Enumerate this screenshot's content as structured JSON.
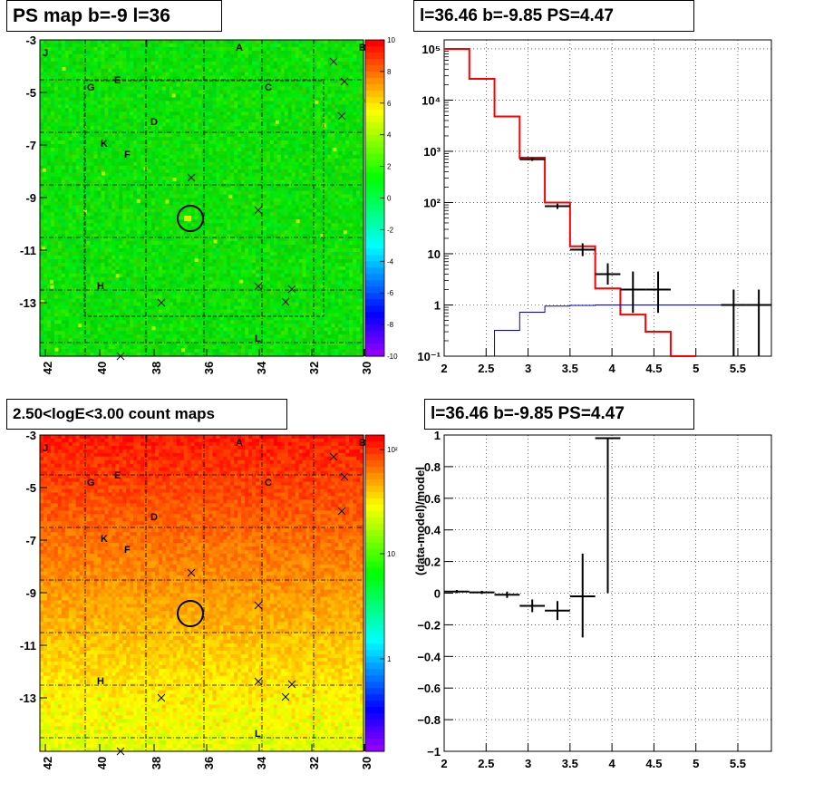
{
  "panels": {
    "tl_title": "PS map b=-9 l=36",
    "tr_title": "l=36.46 b=-9.85 PS=4.47",
    "bl_title": "2.50<logE<3.00 count maps",
    "br_title": "l=36.46 b=-9.85 PS=4.47"
  },
  "maps": {
    "x_ticks": [
      "42",
      "40",
      "38",
      "36",
      "34",
      "32",
      "30"
    ],
    "y_ticks": [
      "-3",
      "-5",
      "-7",
      "-9",
      "-11",
      "-13"
    ],
    "source_labels": [
      "J",
      "I",
      "A",
      "B",
      "E",
      "G",
      "C",
      "D",
      "K",
      "F",
      "H",
      "L"
    ],
    "ts_colorbar_ticks": [
      "10",
      "8",
      "6",
      "4",
      "2",
      "0",
      "-2",
      "-4",
      "-6",
      "-8",
      "-10"
    ],
    "count_colorbar_ticks": [
      "10²",
      "10",
      "1"
    ]
  },
  "chart_data": [
    {
      "type": "line",
      "xlabel": "",
      "ylabel": "",
      "x_ticks": [
        "2",
        "2.5",
        "3",
        "3.5",
        "4",
        "4.5",
        "5",
        "5.5"
      ],
      "y_ticks": [
        "10⁻¹",
        "1",
        "10",
        "10²",
        "10³",
        "10⁴",
        "10⁵"
      ],
      "xlim": [
        2.0,
        5.9
      ],
      "ylim": [
        0.1,
        150000
      ],
      "yscale": "log",
      "grid": true,
      "series": [
        {
          "color": "#ff0000",
          "style": "step",
          "x": [
            2.0,
            2.3,
            2.6,
            2.9,
            3.2,
            3.5,
            3.8,
            4.1,
            4.4,
            4.7
          ],
          "y": [
            100000,
            26000,
            4800,
            750,
            100,
            14,
            2.1,
            0.65,
            0.3,
            0.1
          ]
        },
        {
          "color": "#0000cc",
          "style": "step",
          "x": [
            2.6,
            2.9,
            3.2,
            3.5,
            3.8,
            4.1,
            4.4,
            4.7,
            5.0,
            5.3,
            5.6,
            5.9
          ],
          "y": [
            0.32,
            0.72,
            0.95,
            0.98,
            1.0,
            1.0,
            1.0,
            1.0,
            1.0,
            1.0,
            1.0,
            1.0
          ]
        },
        {
          "color": "#000000",
          "style": "errorbar",
          "x": [
            3.05,
            3.35,
            3.65,
            3.95,
            4.25,
            4.55,
            5.45,
            5.75
          ],
          "y": [
            700,
            85,
            12,
            4,
            2,
            2,
            1,
            1
          ],
          "ylo": [
            650,
            75,
            9,
            2.5,
            0.7,
            0.7,
            0.1,
            0.1
          ],
          "yhi": [
            750,
            95,
            16,
            6.5,
            4.5,
            4.5,
            2,
            2
          ],
          "xerr": 0.15
        }
      ]
    },
    {
      "type": "scatter",
      "xlabel": "",
      "ylabel": "(data-model)/model",
      "x_ticks": [
        "2",
        "2.5",
        "3",
        "3.5",
        "4",
        "4.5",
        "5",
        "5.5"
      ],
      "y_ticks": [
        "1",
        "0.8",
        "0.6",
        "0.4",
        "0.2",
        "0",
        "−0.2",
        "−0.4",
        "−0.6",
        "−0.8",
        "−1"
      ],
      "xlim": [
        2.0,
        5.9
      ],
      "ylim": [
        -1,
        1
      ],
      "grid": true,
      "series": [
        {
          "color": "#000000",
          "style": "errorbar",
          "x": [
            2.15,
            2.45,
            2.75,
            3.05,
            3.35,
            3.65,
            3.95
          ],
          "y": [
            0.01,
            0.005,
            -0.01,
            -0.08,
            -0.11,
            -0.02,
            0.98
          ],
          "ylo": [
            0.0,
            -0.005,
            -0.03,
            -0.12,
            -0.17,
            -0.28,
            0.0
          ],
          "yhi": [
            0.02,
            0.015,
            0.01,
            -0.04,
            -0.05,
            0.25,
            0.98
          ],
          "xerr": 0.15
        }
      ]
    }
  ]
}
